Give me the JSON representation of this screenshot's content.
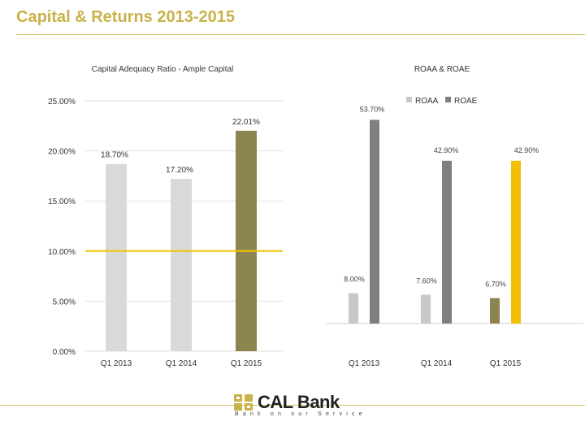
{
  "header": {
    "title": "Capital & Returns 2013-2015"
  },
  "brand": {
    "accent": "#c9b24a",
    "name": "CAL Bank",
    "tagline": "Bank on our Service"
  },
  "chart_data": [
    {
      "type": "bar",
      "title": "Capital Adequacy Ratio - Ample Capital",
      "categories": [
        "Q1 2013",
        "Q1 2014",
        "Q1 2015"
      ],
      "values": [
        18.7,
        17.2,
        22.01
      ],
      "data_labels": [
        "18.70%",
        "17.20%",
        "22.01%"
      ],
      "bar_colors": [
        "#d9d9d9",
        "#d9d9d9",
        "#8c8550"
      ],
      "ylim": [
        0,
        25
      ],
      "yticks": [
        0,
        5,
        10,
        15,
        20,
        25
      ],
      "ytick_labels": [
        "0.00%",
        "5.00%",
        "10.00%",
        "15.00%",
        "20.00%",
        "25.00%"
      ],
      "reference_line": {
        "value": 10,
        "color": "#f2c600"
      },
      "grid": true,
      "legend": "none"
    },
    {
      "type": "bar",
      "title": "ROAA & ROAE",
      "categories": [
        "Q1 2013",
        "Q1 2014",
        "Q1 2015"
      ],
      "series": [
        {
          "name": "ROAA",
          "values": [
            8.0,
            7.6,
            6.7
          ],
          "labels": [
            "8.00%",
            "7.60%",
            "6.70%"
          ],
          "colors": [
            "#c8c8c8",
            "#c8c8c8",
            "#8c8550"
          ]
        },
        {
          "name": "ROAE",
          "values": [
            53.7,
            42.9,
            42.9
          ],
          "labels": [
            "53.70%",
            "42.90%",
            "42.90%"
          ],
          "colors": [
            "#7f7f7f",
            "#7f7f7f",
            "#f2c000"
          ]
        }
      ],
      "ylim": [
        0,
        60
      ],
      "legend": "top-right",
      "legend_colors": [
        "#c8c8c8",
        "#7f7f7f"
      ]
    }
  ]
}
